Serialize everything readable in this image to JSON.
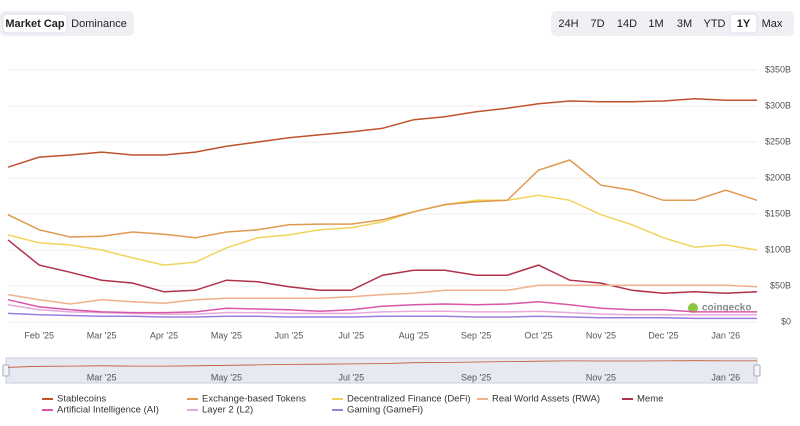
{
  "tabs": [
    {
      "label": "Market Cap",
      "selected": true
    },
    {
      "label": "Dominance",
      "selected": false
    }
  ],
  "ranges": [
    {
      "label": "24H",
      "selected": false
    },
    {
      "label": "7D",
      "selected": false
    },
    {
      "label": "14D",
      "selected": false
    },
    {
      "label": "1M",
      "selected": false
    },
    {
      "label": "3M",
      "selected": false
    },
    {
      "label": "YTD",
      "selected": false
    },
    {
      "label": "1Y",
      "selected": true
    },
    {
      "label": "Max",
      "selected": false
    }
  ],
  "chart_data": {
    "type": "line",
    "watermark": "coingecko",
    "categories": [
      null,
      "Feb '25",
      null,
      "Mar '25",
      null,
      "Apr '25",
      null,
      "May '25",
      null,
      "Jun '25",
      null,
      "Jul '25",
      null,
      "Aug '25",
      null,
      "Sep '25",
      null,
      "Oct '25",
      null,
      "Nov '25",
      null,
      "Dec '25",
      null,
      "Jan '26",
      null
    ],
    "navigator_ticks": [
      "Mar '25",
      "May '25",
      "Jul '25",
      "Sep '25",
      "Nov '25",
      "Jan '26"
    ],
    "ylim": [
      0,
      350
    ],
    "yticks": [
      {
        "value": 0,
        "label": "$0"
      },
      {
        "value": 50,
        "label": "$50B"
      },
      {
        "value": 100,
        "label": "$100B"
      },
      {
        "value": 150,
        "label": "$150B"
      },
      {
        "value": 200,
        "label": "$200B"
      },
      {
        "value": 250,
        "label": "$250B"
      },
      {
        "value": 300,
        "label": "$300B"
      },
      {
        "value": 350,
        "label": "$350B"
      }
    ],
    "grid": true,
    "series": [
      {
        "name": "Stablecoins",
        "color": "#c0522b",
        "values": [
          215,
          229,
          232,
          236,
          232,
          232,
          236,
          244,
          250,
          256,
          260,
          264,
          269,
          281,
          285,
          292,
          297,
          303,
          307,
          306,
          306,
          307,
          310,
          308,
          308
        ]
      },
      {
        "name": "Exchange-based Tokens",
        "color": "#e0994f",
        "values": [
          149,
          128,
          118,
          119,
          125,
          122,
          117,
          125,
          128,
          135,
          136,
          136,
          142,
          153,
          163,
          167,
          169,
          211,
          225,
          190,
          183,
          169,
          169,
          183,
          169
        ]
      },
      {
        "name": "Decentralized Finance (DeFi)",
        "color": "#f2d35a",
        "values": [
          121,
          110,
          107,
          100,
          89,
          79,
          83,
          103,
          117,
          121,
          128,
          131,
          139,
          153,
          163,
          169,
          169,
          176,
          169,
          149,
          135,
          117,
          104,
          107,
          100
        ]
      },
      {
        "name": "Real World Assets (RWA)",
        "color": "#f0b08c",
        "values": [
          38,
          31,
          25,
          31,
          28,
          26,
          31,
          33,
          33,
          33,
          33,
          35,
          38,
          40,
          44,
          44,
          44,
          51,
          51,
          51,
          51,
          51,
          51,
          51,
          49
        ]
      },
      {
        "name": "Meme",
        "color": "#b0314a",
        "values": [
          114,
          79,
          69,
          58,
          54,
          42,
          44,
          58,
          56,
          49,
          44,
          44,
          65,
          72,
          72,
          65,
          65,
          79,
          58,
          54,
          44,
          40,
          42,
          40,
          42
        ]
      },
      {
        "name": "Artificial Intelligence (AI)",
        "color": "#d957a6",
        "values": [
          31,
          21,
          17,
          14,
          13,
          13,
          14,
          19,
          18,
          17,
          15,
          17,
          22,
          24,
          25,
          24,
          25,
          28,
          24,
          19,
          17,
          17,
          14,
          14,
          14
        ]
      },
      {
        "name": "Layer 2 (L2)",
        "color": "#e8a8d8",
        "values": [
          24,
          17,
          14,
          13,
          12,
          11,
          11,
          13,
          13,
          12,
          12,
          12,
          14,
          15,
          15,
          14,
          14,
          15,
          13,
          11,
          10,
          10,
          10,
          10,
          10
        ]
      },
      {
        "name": "Gaming (GameFi)",
        "color": "#9b7fe0",
        "values": [
          12,
          10,
          9,
          8,
          8,
          7,
          7,
          8,
          8,
          7,
          7,
          7,
          8,
          8,
          8,
          7,
          7,
          8,
          7,
          6,
          6,
          6,
          5,
          5,
          5
        ]
      }
    ]
  }
}
